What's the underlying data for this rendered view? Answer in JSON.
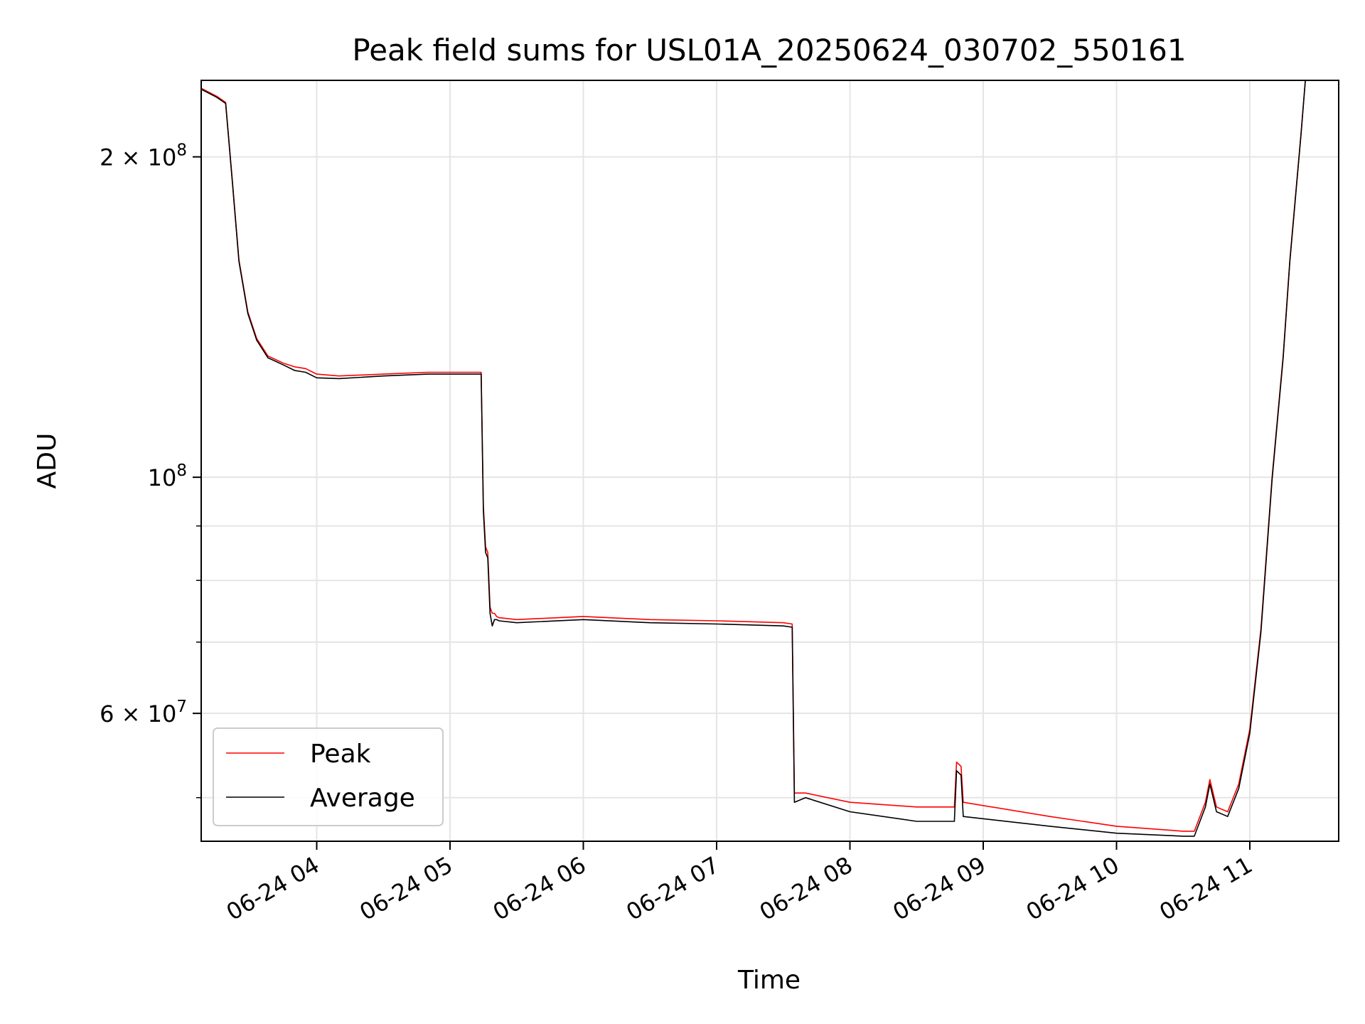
{
  "chart_data": {
    "type": "line",
    "title": "Peak field sums for USL01A_20250624_030702_550161",
    "xlabel": "Time",
    "ylabel": "ADU",
    "yscale": "log",
    "ylim": [
      45500000,
      236000000
    ],
    "xlim": [
      "2025-06-24 03:08",
      "2025-06-24 11:40"
    ],
    "grid": true,
    "legend_position": "lower-left",
    "x_tick_labels": [
      "06-24 04",
      "06-24 05",
      "06-24 06",
      "06-24 07",
      "06-24 08",
      "06-24 09",
      "06-24 10",
      "06-24 11"
    ],
    "x_tick_values": [
      "2025-06-24 04:00",
      "2025-06-24 05:00",
      "2025-06-24 06:00",
      "2025-06-24 07:00",
      "2025-06-24 08:00",
      "2025-06-24 09:00",
      "2025-06-24 10:00",
      "2025-06-24 11:00"
    ],
    "y_major_ticks": [
      {
        "value": 200000000,
        "mantissa": "2",
        "base": "10",
        "exp": "8"
      },
      {
        "value": 100000000,
        "mantissa": "",
        "base": "10",
        "exp": "8"
      },
      {
        "value": 60000000,
        "mantissa": "6",
        "base": "10",
        "exp": "7"
      }
    ],
    "y_minor_ticks": [
      50000000,
      70000000,
      80000000,
      90000000
    ],
    "series": [
      {
        "name": "Peak",
        "color": "#ff0000",
        "x": [
          "2025-06-24 03:08",
          "2025-06-24 03:15",
          "2025-06-24 03:19",
          "2025-06-24 03:22",
          "2025-06-24 03:25",
          "2025-06-24 03:29",
          "2025-06-24 03:33",
          "2025-06-24 03:38",
          "2025-06-24 03:45",
          "2025-06-24 03:50",
          "2025-06-24 03:55",
          "2025-06-24 04:00",
          "2025-06-24 04:10",
          "2025-06-24 04:30",
          "2025-06-24 04:50",
          "2025-06-24 05:14",
          "2025-06-24 05:15",
          "2025-06-24 05:16",
          "2025-06-24 05:17",
          "2025-06-24 05:18",
          "2025-06-24 05:19",
          "2025-06-24 05:20",
          "2025-06-24 05:21",
          "2025-06-24 05:22",
          "2025-06-24 05:30",
          "2025-06-24 06:00",
          "2025-06-24 06:30",
          "2025-06-24 07:00",
          "2025-06-24 07:30",
          "2025-06-24 07:34",
          "2025-06-24 07:35",
          "2025-06-24 07:40",
          "2025-06-24 08:00",
          "2025-06-24 08:30",
          "2025-06-24 08:47",
          "2025-06-24 08:48",
          "2025-06-24 08:50",
          "2025-06-24 08:51",
          "2025-06-24 09:30",
          "2025-06-24 10:00",
          "2025-06-24 10:30",
          "2025-06-24 10:35",
          "2025-06-24 10:40",
          "2025-06-24 10:42",
          "2025-06-24 10:45",
          "2025-06-24 10:50",
          "2025-06-24 10:55",
          "2025-06-24 11:00",
          "2025-06-24 11:05",
          "2025-06-24 11:10",
          "2025-06-24 11:15",
          "2025-06-24 11:18",
          "2025-06-24 11:23",
          "2025-06-24 11:25"
        ],
        "y": [
          232000000,
          228000000,
          225000000,
          190000000,
          160000000,
          143000000,
          135000000,
          130000000,
          128000000,
          127000000,
          126500000,
          125000000,
          124500000,
          125000000,
          125500000,
          125500000,
          94000000,
          86000000,
          85000000,
          75500000,
          74500000,
          74500000,
          74000000,
          73800000,
          73500000,
          74000000,
          73500000,
          73300000,
          73000000,
          72800000,
          50500000,
          50500000,
          49500000,
          49000000,
          49000000,
          54000000,
          53500000,
          49500000,
          48000000,
          47000000,
          46500000,
          46500000,
          49500000,
          52000000,
          49000000,
          48500000,
          51500000,
          58000000,
          72000000,
          100000000,
          130000000,
          160000000,
          210000000,
          236000000
        ]
      },
      {
        "name": "Average",
        "color": "#000000",
        "x": [
          "2025-06-24 03:08",
          "2025-06-24 03:15",
          "2025-06-24 03:19",
          "2025-06-24 03:22",
          "2025-06-24 03:25",
          "2025-06-24 03:29",
          "2025-06-24 03:33",
          "2025-06-24 03:38",
          "2025-06-24 03:45",
          "2025-06-24 03:50",
          "2025-06-24 03:55",
          "2025-06-24 04:00",
          "2025-06-24 04:10",
          "2025-06-24 04:30",
          "2025-06-24 04:50",
          "2025-06-24 05:14",
          "2025-06-24 05:15",
          "2025-06-24 05:16",
          "2025-06-24 05:17",
          "2025-06-24 05:18",
          "2025-06-24 05:19",
          "2025-06-24 05:20",
          "2025-06-24 05:21",
          "2025-06-24 05:22",
          "2025-06-24 05:30",
          "2025-06-24 06:00",
          "2025-06-24 06:30",
          "2025-06-24 07:00",
          "2025-06-24 07:30",
          "2025-06-24 07:34",
          "2025-06-24 07:35",
          "2025-06-24 07:40",
          "2025-06-24 08:00",
          "2025-06-24 08:30",
          "2025-06-24 08:47",
          "2025-06-24 08:48",
          "2025-06-24 08:50",
          "2025-06-24 08:51",
          "2025-06-24 09:30",
          "2025-06-24 10:00",
          "2025-06-24 10:30",
          "2025-06-24 10:35",
          "2025-06-24 10:40",
          "2025-06-24 10:42",
          "2025-06-24 10:45",
          "2025-06-24 10:50",
          "2025-06-24 10:55",
          "2025-06-24 11:00",
          "2025-06-24 11:05",
          "2025-06-24 11:10",
          "2025-06-24 11:15",
          "2025-06-24 11:18",
          "2025-06-24 11:23",
          "2025-06-24 11:25"
        ],
        "y": [
          231500000,
          227500000,
          224500000,
          189500000,
          159500000,
          142500000,
          134500000,
          129500000,
          127500000,
          126000000,
          125500000,
          124000000,
          123800000,
          124500000,
          125000000,
          125000000,
          93000000,
          85000000,
          84000000,
          74500000,
          72500000,
          73500000,
          73500000,
          73300000,
          73000000,
          73500000,
          73000000,
          72800000,
          72500000,
          72300000,
          49500000,
          50000000,
          48500000,
          47500000,
          47500000,
          53000000,
          52500000,
          48000000,
          47000000,
          46300000,
          46000000,
          46000000,
          49000000,
          51500000,
          48500000,
          48000000,
          51000000,
          57500000,
          71500000,
          99500000,
          129500000,
          159500000,
          209500000,
          236000000
        ]
      }
    ]
  }
}
